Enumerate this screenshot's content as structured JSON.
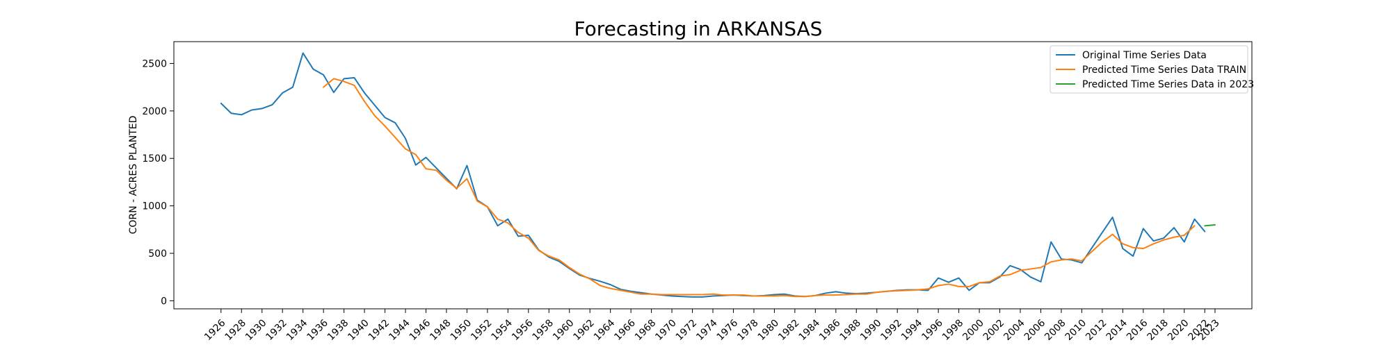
{
  "chart_data": {
    "type": "line",
    "title": "Forecasting in ARKANSAS",
    "xlabel": "",
    "ylabel": "CORN - ACRES PLANTED",
    "xlim": [
      1921.4,
      2026.6
    ],
    "ylim": [
      -85,
      2730
    ],
    "yticks": [
      0,
      500,
      1000,
      1500,
      2000,
      2500
    ],
    "xticks": [
      1926,
      1928,
      1930,
      1932,
      1934,
      1936,
      1938,
      1940,
      1942,
      1944,
      1946,
      1948,
      1950,
      1952,
      1954,
      1956,
      1958,
      1960,
      1962,
      1964,
      1966,
      1968,
      1970,
      1972,
      1974,
      1976,
      1978,
      1980,
      1982,
      1984,
      1986,
      1988,
      1990,
      1992,
      1994,
      1996,
      1998,
      2000,
      2002,
      2004,
      2006,
      2008,
      2010,
      2012,
      2014,
      2016,
      2018,
      2020,
      2022,
      2023
    ],
    "grid": false,
    "legend_position": "top-right",
    "series": [
      {
        "name": "Original Time Series Data",
        "color": "#1f77b4",
        "x": [
          1926,
          1927,
          1928,
          1929,
          1930,
          1931,
          1932,
          1933,
          1934,
          1935,
          1936,
          1937,
          1938,
          1939,
          1940,
          1941,
          1942,
          1943,
          1944,
          1945,
          1946,
          1947,
          1948,
          1949,
          1950,
          1951,
          1952,
          1953,
          1954,
          1955,
          1956,
          1957,
          1958,
          1959,
          1960,
          1961,
          1962,
          1963,
          1964,
          1965,
          1966,
          1967,
          1968,
          1969,
          1970,
          1971,
          1972,
          1973,
          1974,
          1975,
          1976,
          1977,
          1978,
          1979,
          1980,
          1981,
          1982,
          1983,
          1984,
          1985,
          1986,
          1987,
          1988,
          1989,
          1990,
          1991,
          1992,
          1993,
          1994,
          1995,
          1996,
          1997,
          1998,
          1999,
          2000,
          2001,
          2002,
          2003,
          2004,
          2005,
          2006,
          2007,
          2008,
          2009,
          2010,
          2011,
          2012,
          2013,
          2014,
          2015,
          2016,
          2017,
          2018,
          2019,
          2020,
          2021,
          2022
        ],
        "y": [
          2080,
          1975,
          1960,
          2010,
          2025,
          2065,
          2190,
          2250,
          2610,
          2440,
          2380,
          2195,
          2340,
          2350,
          2190,
          2060,
          1930,
          1875,
          1710,
          1430,
          1510,
          1400,
          1290,
          1180,
          1425,
          1060,
          990,
          790,
          860,
          680,
          690,
          535,
          460,
          415,
          340,
          270,
          235,
          205,
          170,
          120,
          100,
          85,
          70,
          60,
          50,
          45,
          40,
          40,
          50,
          55,
          60,
          55,
          50,
          55,
          65,
          70,
          50,
          45,
          55,
          80,
          95,
          80,
          75,
          80,
          90,
          100,
          110,
          115,
          115,
          110,
          240,
          195,
          240,
          110,
          190,
          190,
          250,
          370,
          330,
          250,
          200,
          620,
          440,
          430,
          400,
          560,
          720,
          880,
          550,
          470,
          760,
          630,
          660,
          770,
          620,
          860,
          730
        ]
      },
      {
        "name": "Predicted Time Series Data TRAIN",
        "color": "#ff7f0e",
        "x": [
          1936,
          1937,
          1938,
          1939,
          1940,
          1941,
          1942,
          1943,
          1944,
          1945,
          1946,
          1947,
          1948,
          1949,
          1950,
          1951,
          1952,
          1953,
          1954,
          1955,
          1956,
          1957,
          1958,
          1959,
          1960,
          1961,
          1962,
          1963,
          1964,
          1965,
          1966,
          1967,
          1968,
          1969,
          1970,
          1971,
          1972,
          1973,
          1974,
          1975,
          1976,
          1977,
          1978,
          1979,
          1980,
          1981,
          1982,
          1983,
          1984,
          1985,
          1986,
          1987,
          1988,
          1989,
          1990,
          1991,
          1992,
          1993,
          1994,
          1995,
          1996,
          1997,
          1998,
          1999,
          2000,
          2001,
          2002,
          2003,
          2004,
          2005,
          2006,
          2007,
          2008,
          2009,
          2010,
          2011,
          2012,
          2013,
          2014,
          2015,
          2016,
          2017,
          2018,
          2019,
          2020,
          2021
        ],
        "y": [
          2250,
          2340,
          2310,
          2270,
          2100,
          1950,
          1840,
          1720,
          1600,
          1540,
          1390,
          1375,
          1270,
          1185,
          1285,
          1050,
          990,
          860,
          820,
          720,
          660,
          530,
          470,
          430,
          350,
          280,
          230,
          160,
          130,
          110,
          90,
          70,
          70,
          65,
          65,
          65,
          65,
          65,
          70,
          60,
          60,
          60,
          50,
          50,
          50,
          55,
          45,
          45,
          55,
          60,
          60,
          65,
          70,
          70,
          90,
          100,
          105,
          110,
          115,
          125,
          160,
          175,
          150,
          150,
          190,
          200,
          260,
          275,
          320,
          335,
          350,
          410,
          430,
          440,
          420,
          520,
          620,
          700,
          600,
          560,
          550,
          600,
          640,
          670,
          690,
          790
        ]
      },
      {
        "name": "Predicted Time Series Data in 2023",
        "color": "#2ca02c",
        "x": [
          2022,
          2023
        ],
        "y": [
          790,
          800
        ]
      }
    ]
  }
}
